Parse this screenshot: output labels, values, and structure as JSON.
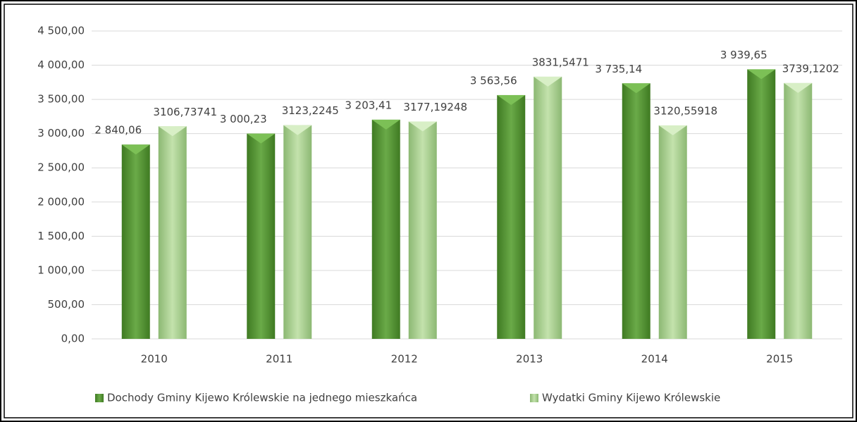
{
  "chart_data": {
    "type": "bar",
    "categories": [
      "2010",
      "2011",
      "2012",
      "2013",
      "2014",
      "2015"
    ],
    "series": [
      {
        "name": "Dochody Gminy Kijewo Królewskie na jednego mieszkańca",
        "color": "#4f8f2f",
        "values": [
          2840.06,
          3000.23,
          3203.41,
          3563.56,
          3735.14,
          3939.65
        ],
        "value_labels": [
          "2 840,06",
          "3 000,23",
          "3 203,41",
          "3 563,56",
          "3 735,14",
          "3 939,65"
        ]
      },
      {
        "name": "Wydatki Gminy Kijewo Królewskie",
        "color": "#a9d18e",
        "values": [
          3106.73741,
          3123.2245,
          3177.19248,
          3831.5471,
          3120.55918,
          3739.1202
        ],
        "value_labels": [
          "3106,73741",
          "3123,2245",
          "3177,19248",
          "3831,5471",
          "3120,55918",
          "3739,1202"
        ]
      }
    ],
    "ylim": [
      0,
      4500
    ],
    "yticks": [
      {
        "value": 0,
        "label": "0,00"
      },
      {
        "value": 500,
        "label": "500,00"
      },
      {
        "value": 1000,
        "label": "1 000,00"
      },
      {
        "value": 1500,
        "label": "1 500,00"
      },
      {
        "value": 2000,
        "label": "2 000,00"
      },
      {
        "value": 2500,
        "label": "2 500,00"
      },
      {
        "value": 3000,
        "label": "3 000,00"
      },
      {
        "value": 3500,
        "label": "3 500,00"
      },
      {
        "value": 4000,
        "label": "4 000,00"
      },
      {
        "value": 4500,
        "label": "4 500,00"
      }
    ],
    "grid": true,
    "legend": "bottom"
  }
}
